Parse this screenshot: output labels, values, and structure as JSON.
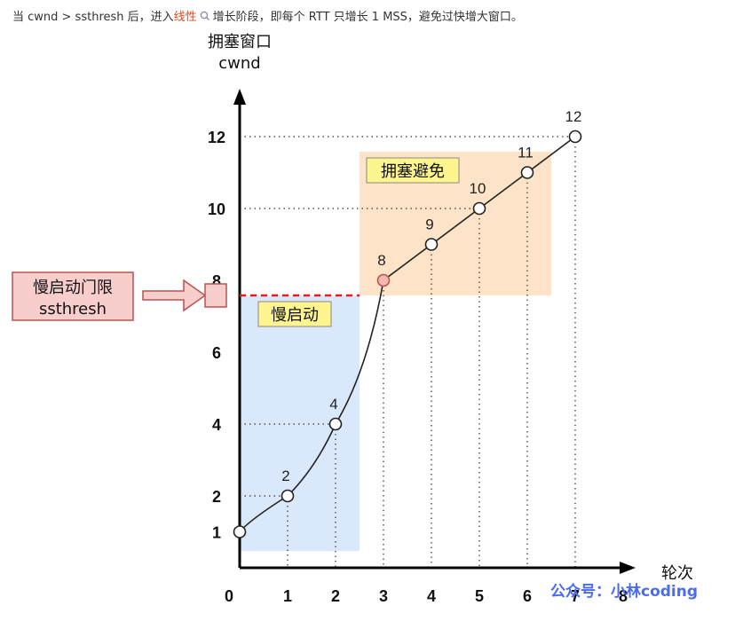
{
  "caption": {
    "prefix": "当 cwnd > ssthresh 后，进入",
    "link": "线性",
    "suffix": "增长阶段，即每个 RTT 只增长 1 MSS，避免过快增大窗口。"
  },
  "axes": {
    "y_title": "拥塞窗口",
    "y_unit": "cwnd",
    "x_title": "轮次"
  },
  "labels": {
    "slow_start": "慢启动",
    "congestion_avoid": "拥塞避免",
    "threshold_line1": "慢启动门限",
    "threshold_line2": "ssthresh",
    "watermark": "公众号：小林coding"
  },
  "colors": {
    "slow_start_region": "#dae8fc",
    "avoid_region": "#fde3c8",
    "threshold_box": "#f8cecc",
    "threshold_border": "#b85450",
    "label_box": "#fff58f",
    "dashed_line": "#e02020",
    "watermark": "#4a6cf0"
  },
  "chart_data": {
    "type": "line",
    "x_ticks": [
      "0",
      "1",
      "2",
      "3",
      "4",
      "5",
      "6",
      "7",
      "8"
    ],
    "y_ticks": [
      "1",
      "2",
      "4",
      "6",
      "8",
      "10",
      "12"
    ],
    "threshold": 8,
    "points": [
      {
        "x": 0,
        "y": 1,
        "label": "1"
      },
      {
        "x": 1,
        "y": 2,
        "label": "2"
      },
      {
        "x": 2,
        "y": 4,
        "label": "4"
      },
      {
        "x": 3,
        "y": 8,
        "label": "8"
      },
      {
        "x": 4,
        "y": 9,
        "label": "9"
      },
      {
        "x": 5,
        "y": 10,
        "label": "10"
      },
      {
        "x": 6,
        "y": 11,
        "label": "11"
      },
      {
        "x": 7,
        "y": 12,
        "label": "12"
      }
    ]
  }
}
